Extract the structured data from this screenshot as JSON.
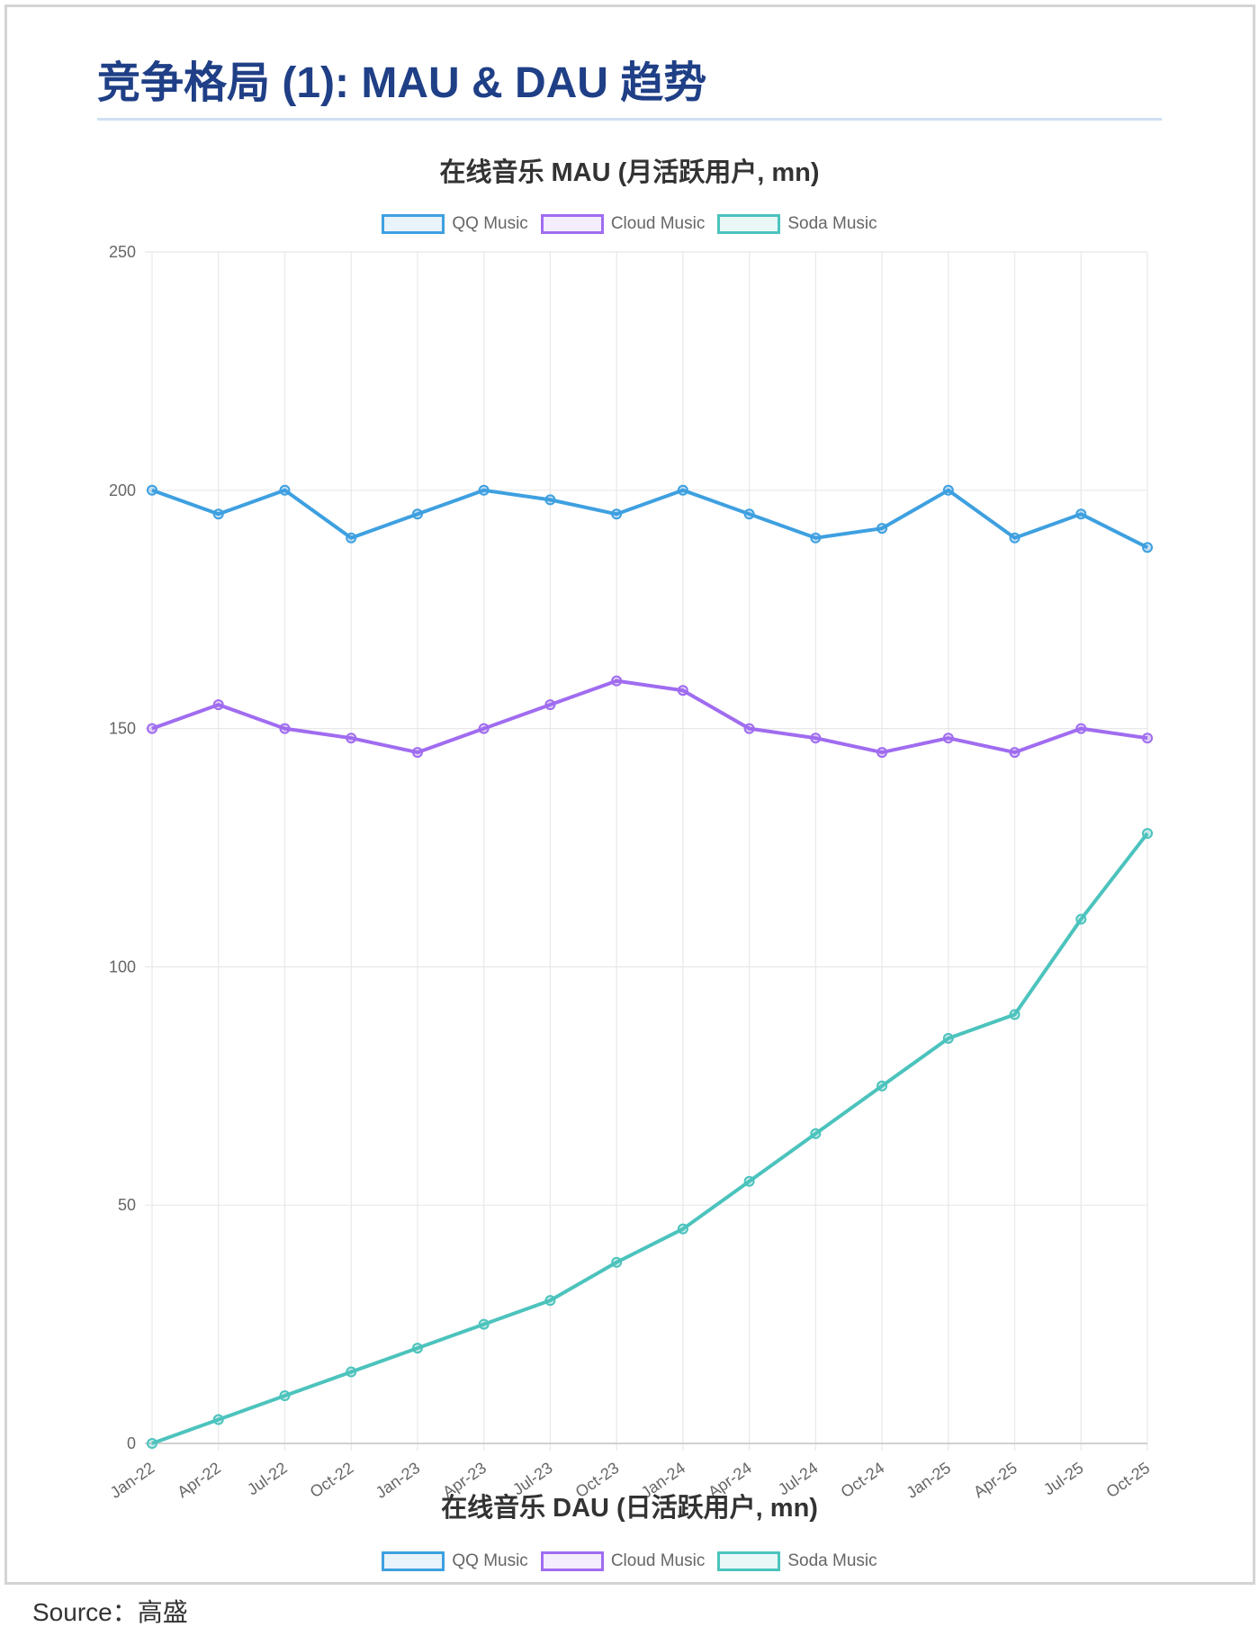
{
  "page_title": "竞争格局 (1): MAU & DAU 趋势",
  "source": "Source：高盛",
  "chart_data": {
    "type": "line",
    "title": "在线音乐 MAU (月活跃用户, mn)",
    "next_chart_title": "在线音乐 DAU (日活跃用户, mn)",
    "xlabel": "",
    "ylabel": "",
    "ylim": [
      0,
      250
    ],
    "yticks": [
      0,
      50,
      100,
      150,
      200,
      250
    ],
    "grid": true,
    "legend_position": "top",
    "categories": [
      "Jan-22",
      "Apr-22",
      "Jul-22",
      "Oct-22",
      "Jan-23",
      "Apr-23",
      "Jul-23",
      "Oct-23",
      "Jan-24",
      "Apr-24",
      "Jul-24",
      "Oct-24",
      "Jan-25",
      "Apr-25",
      "Jul-25",
      "Oct-25"
    ],
    "series": [
      {
        "name": "QQ Music",
        "color": "#3ea0e0",
        "values": [
          200,
          195,
          200,
          190,
          195,
          200,
          198,
          195,
          200,
          195,
          190,
          192,
          200,
          190,
          195,
          188
        ]
      },
      {
        "name": "Cloud Music",
        "color": "#a06cf0",
        "values": [
          150,
          155,
          150,
          148,
          145,
          150,
          155,
          160,
          158,
          150,
          148,
          145,
          148,
          145,
          150,
          148
        ]
      },
      {
        "name": "Soda Music",
        "color": "#4cc3bd",
        "values": [
          0,
          5,
          10,
          15,
          20,
          25,
          30,
          38,
          45,
          55,
          65,
          75,
          85,
          90,
          110,
          128
        ]
      }
    ]
  }
}
